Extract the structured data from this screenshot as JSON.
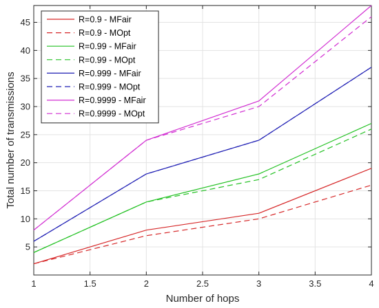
{
  "chart_data": {
    "type": "line",
    "xlabel": "Number of hops",
    "ylabel": "Total number of transmissions",
    "x": [
      1,
      2,
      3,
      4
    ],
    "xlim": [
      1,
      4
    ],
    "ylim": [
      0,
      48
    ],
    "xticks": [
      1,
      1.5,
      2,
      2.5,
      3,
      3.5,
      4
    ],
    "xtick_labels": [
      "1",
      "1.5",
      "2",
      "2.5",
      "3",
      "3.5",
      "4"
    ],
    "yticks": [
      0,
      5,
      10,
      15,
      20,
      25,
      30,
      35,
      40,
      45
    ],
    "ytick_labels": [
      "",
      "5",
      "10",
      "15",
      "20",
      "25",
      "30",
      "35",
      "40",
      "45"
    ],
    "grid": true,
    "legend_position": "top-left",
    "series": [
      {
        "name": "R=0.9 - MFair",
        "values": [
          2,
          8,
          11,
          19
        ],
        "color": "#d62728",
        "style": "solid"
      },
      {
        "name": "R=0.9 - MOpt",
        "values": [
          2,
          7,
          10,
          16
        ],
        "color": "#d62728",
        "style": "dashed"
      },
      {
        "name": "R=0.99 - MFair",
        "values": [
          4,
          13,
          18,
          27
        ],
        "color": "#22c122",
        "style": "solid"
      },
      {
        "name": "R=0.99 - MOpt",
        "values": [
          4,
          13,
          17,
          26
        ],
        "color": "#22c122",
        "style": "dashed"
      },
      {
        "name": "R=0.999 - MFair",
        "values": [
          6,
          18,
          24,
          37
        ],
        "color": "#1f1fb4",
        "style": "solid"
      },
      {
        "name": "R=0.999 - MOpt",
        "values": [
          6,
          18,
          24,
          37
        ],
        "color": "#1f1fb4",
        "style": "dashed"
      },
      {
        "name": "R=0.9999 - MFair",
        "values": [
          8,
          24,
          31,
          48
        ],
        "color": "#d22fd2",
        "style": "solid"
      },
      {
        "name": "R=0.9999 - MOpt",
        "values": [
          8,
          24,
          30,
          46
        ],
        "color": "#d22fd2",
        "style": "dashed"
      }
    ]
  }
}
